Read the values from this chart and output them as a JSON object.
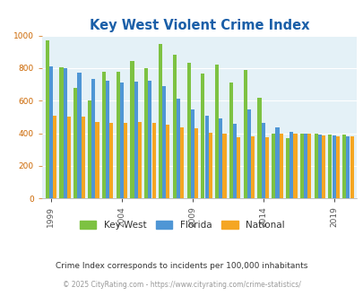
{
  "title": "Key West Violent Crime Index",
  "subtitle": "Crime Index corresponds to incidents per 100,000 inhabitants",
  "footer": "© 2025 CityRating.com - https://www.cityrating.com/crime-statistics/",
  "years": [
    1999,
    2000,
    2001,
    2002,
    2003,
    2004,
    2005,
    2006,
    2007,
    2008,
    2009,
    2010,
    2011,
    2012,
    2013,
    2014,
    2015,
    2016,
    2017,
    2018,
    2019,
    2020
  ],
  "key_west": [
    970,
    805,
    680,
    600,
    780,
    775,
    845,
    800,
    950,
    880,
    835,
    765,
    820,
    710,
    790,
    620,
    400,
    370,
    395,
    400,
    390,
    390
  ],
  "florida": [
    810,
    800,
    770,
    735,
    720,
    710,
    715,
    720,
    690,
    610,
    545,
    510,
    490,
    460,
    545,
    465,
    435,
    410,
    400,
    390,
    385,
    380
  ],
  "national": [
    510,
    500,
    500,
    470,
    465,
    465,
    470,
    465,
    455,
    435,
    430,
    405,
    395,
    375,
    380,
    375,
    395,
    400,
    395,
    385,
    380,
    380
  ],
  "color_key_west": "#7dc242",
  "color_florida": "#4f96d5",
  "color_national": "#f5a623",
  "color_bg_chart": "#e4f1f7",
  "color_bg_fig": "#ffffff",
  "color_title": "#1a5fa8",
  "color_subtitle": "#333333",
  "color_footer": "#999999",
  "color_ytick": "#cc6600",
  "ylim": [
    0,
    1000
  ],
  "yticks": [
    0,
    200,
    400,
    600,
    800,
    1000
  ],
  "xtick_years": [
    1999,
    2004,
    2009,
    2014,
    2019
  ]
}
